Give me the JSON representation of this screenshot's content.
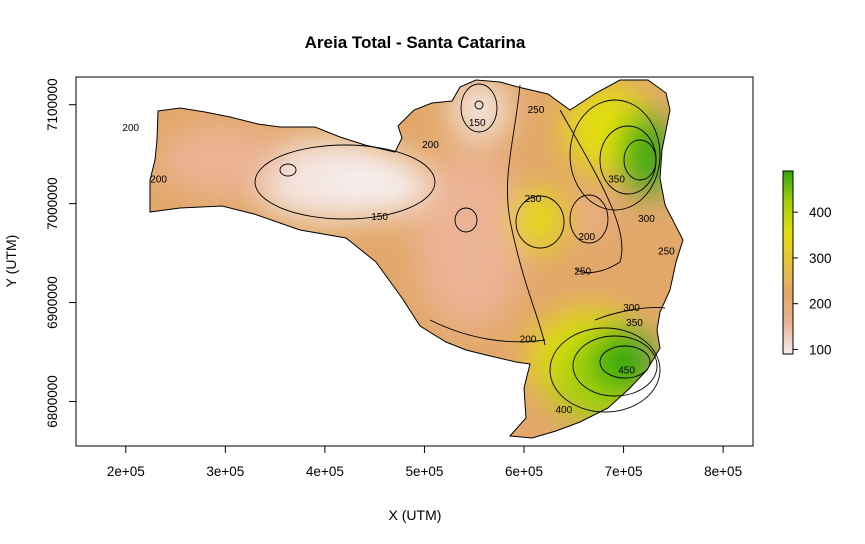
{
  "chart_data": {
    "type": "heatmap",
    "title": "Areia Total - Santa Catarina",
    "xlabel": "X (UTM)",
    "ylabel": "Y (UTM)",
    "xlim": [
      150000,
      830000
    ],
    "ylim": [
      6755000,
      7128000
    ],
    "x_ticks": [
      {
        "value": 200000,
        "label": "2e+05"
      },
      {
        "value": 300000,
        "label": "3e+05"
      },
      {
        "value": 400000,
        "label": "4e+05"
      },
      {
        "value": 500000,
        "label": "5e+05"
      },
      {
        "value": 600000,
        "label": "6e+05"
      },
      {
        "value": 700000,
        "label": "7e+05"
      },
      {
        "value": 800000,
        "label": "8e+05"
      }
    ],
    "y_ticks": [
      {
        "value": 6800000,
        "label": "6800000"
      },
      {
        "value": 6900000,
        "label": "6900000"
      },
      {
        "value": 7000000,
        "label": "7000000"
      },
      {
        "value": 7100000,
        "label": "7100000"
      }
    ],
    "colorbar": {
      "range": [
        90,
        490
      ],
      "ticks": [
        100,
        200,
        300,
        400
      ],
      "tick_labels": [
        "100",
        "200",
        "300",
        "400"
      ],
      "palette": [
        "#f6eeee",
        "#ebb395",
        "#e2a86a",
        "#e5c23c",
        "#e2de0d",
        "#a4cf0a",
        "#2da60d"
      ]
    },
    "contour_labels": [
      {
        "text": "150",
        "x": 553000,
        "y": 7082000
      },
      {
        "text": "250",
        "x": 612000,
        "y": 7095000
      },
      {
        "text": "200",
        "x": 205000,
        "y": 7077000
      },
      {
        "text": "200",
        "x": 506000,
        "y": 7060000
      },
      {
        "text": "200",
        "x": 233000,
        "y": 7025000
      },
      {
        "text": "150",
        "x": 455000,
        "y": 6987000
      },
      {
        "text": "250",
        "x": 609000,
        "y": 7005000
      },
      {
        "text": "350",
        "x": 693000,
        "y": 7025000
      },
      {
        "text": "300",
        "x": 723000,
        "y": 6985000
      },
      {
        "text": "200",
        "x": 663000,
        "y": 6967000
      },
      {
        "text": "250",
        "x": 743000,
        "y": 6952000
      },
      {
        "text": "250",
        "x": 659000,
        "y": 6932000
      },
      {
        "text": "300",
        "x": 708000,
        "y": 6895000
      },
      {
        "text": "350",
        "x": 711000,
        "y": 6880000
      },
      {
        "text": "200",
        "x": 604000,
        "y": 6863000
      },
      {
        "text": "450",
        "x": 703000,
        "y": 6832000
      },
      {
        "text": "400",
        "x": 640000,
        "y": 6792000
      }
    ]
  }
}
